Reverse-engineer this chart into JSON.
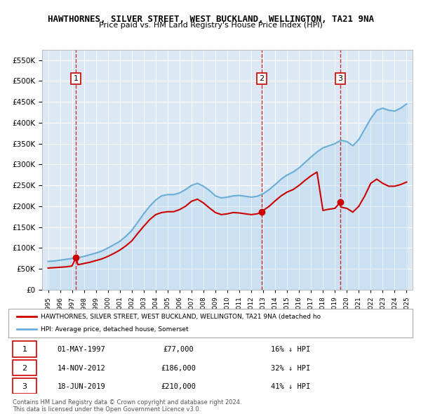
{
  "title": "HAWTHORNES, SILVER STREET, WEST BUCKLAND, WELLINGTON, TA21 9NA",
  "subtitle": "Price paid vs. HM Land Registry's House Price Index (HPI)",
  "legend_line1": "HAWTHORNES, SILVER STREET, WEST BUCKLAND, WELLINGTON, TA21 9NA (detached ho",
  "legend_line2": "HPI: Average price, detached house, Somerset",
  "footnote1": "Contains HM Land Registry data © Crown copyright and database right 2024.",
  "footnote2": "This data is licensed under the Open Government Licence v3.0.",
  "sales": [
    {
      "label": "1",
      "date": "01-MAY-1997",
      "price": 77000,
      "pct": "16%",
      "x": 1997.33
    },
    {
      "label": "2",
      "date": "14-NOV-2012",
      "price": 186000,
      "pct": "32%",
      "x": 2012.87
    },
    {
      "label": "3",
      "date": "18-JUN-2019",
      "price": 210000,
      "pct": "41%",
      "x": 2019.46
    }
  ],
  "hpi_x": [
    1995,
    1995.5,
    1996,
    1996.5,
    1997,
    1997.5,
    1998,
    1998.5,
    1999,
    1999.5,
    2000,
    2000.5,
    2001,
    2001.5,
    2002,
    2002.5,
    2003,
    2003.5,
    2004,
    2004.5,
    2005,
    2005.5,
    2006,
    2006.5,
    2007,
    2007.5,
    2008,
    2008.5,
    2009,
    2009.5,
    2010,
    2010.5,
    2011,
    2011.5,
    2012,
    2012.5,
    2013,
    2013.5,
    2014,
    2014.5,
    2015,
    2015.5,
    2016,
    2016.5,
    2017,
    2017.5,
    2018,
    2018.5,
    2019,
    2019.5,
    2020,
    2020.5,
    2021,
    2021.5,
    2022,
    2022.5,
    2023,
    2023.5,
    2024,
    2024.5,
    2025
  ],
  "hpi_y": [
    68000,
    69000,
    71000,
    73000,
    75000,
    77000,
    80000,
    84000,
    88000,
    93000,
    100000,
    108000,
    116000,
    128000,
    142000,
    162000,
    182000,
    200000,
    215000,
    225000,
    228000,
    228000,
    232000,
    240000,
    250000,
    255000,
    248000,
    238000,
    225000,
    220000,
    222000,
    225000,
    226000,
    224000,
    222000,
    224000,
    230000,
    240000,
    252000,
    265000,
    275000,
    282000,
    292000,
    305000,
    318000,
    330000,
    340000,
    345000,
    350000,
    358000,
    355000,
    345000,
    360000,
    385000,
    410000,
    430000,
    435000,
    430000,
    428000,
    435000,
    445000
  ],
  "red_line_x": [
    1995,
    1995.5,
    1996,
    1996.5,
    1997,
    1997.33,
    1997.5,
    1998,
    1998.5,
    1999,
    1999.5,
    2000,
    2000.5,
    2001,
    2001.5,
    2002,
    2002.5,
    2003,
    2003.5,
    2004,
    2004.5,
    2005,
    2005.5,
    2006,
    2006.5,
    2007,
    2007.5,
    2008,
    2008.5,
    2009,
    2009.5,
    2010,
    2010.5,
    2011,
    2011.5,
    2012,
    2012.5,
    2012.87,
    2013,
    2013.5,
    2014,
    2014.5,
    2015,
    2015.5,
    2016,
    2016.5,
    2017,
    2017.5,
    2018,
    2018.5,
    2019,
    2019.46,
    2019.5,
    2020,
    2020.5,
    2021,
    2021.5,
    2022,
    2022.5,
    2023,
    2023.5,
    2024,
    2024.5,
    2025
  ],
  "red_line_y": [
    52000,
    53000,
    54000,
    55000,
    57000,
    77000,
    60000,
    63000,
    66000,
    70000,
    74000,
    80000,
    87000,
    95000,
    105000,
    117000,
    135000,
    152000,
    168000,
    180000,
    185000,
    187000,
    187000,
    192000,
    200000,
    212000,
    217000,
    208000,
    196000,
    185000,
    180000,
    182000,
    185000,
    184000,
    182000,
    180000,
    182000,
    186000,
    190000,
    200000,
    213000,
    225000,
    234000,
    240000,
    250000,
    262000,
    273000,
    282000,
    190000,
    193000,
    195000,
    210000,
    198000,
    195000,
    186000,
    200000,
    225000,
    255000,
    265000,
    255000,
    248000,
    248000,
    252000,
    258000
  ],
  "ylim": [
    0,
    575000
  ],
  "xlim": [
    1994.5,
    2025.5
  ],
  "bg_color": "#dce9f5",
  "plot_bg": "#dce9f5",
  "hpi_color": "#6baed6",
  "red_color": "#cc0000",
  "grid_color": "#ffffff",
  "sale_box_color": "#cc0000",
  "dashed_color": "#cc0000"
}
